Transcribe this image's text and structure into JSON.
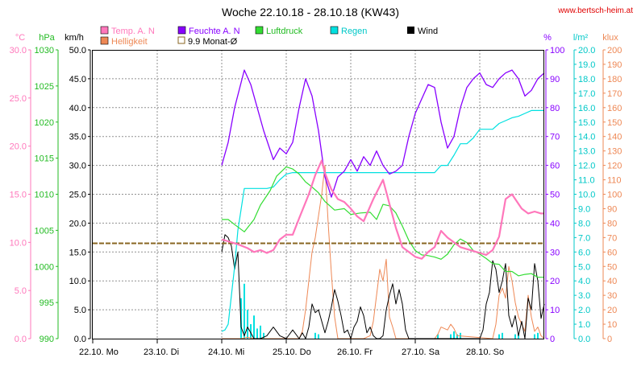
{
  "header": {
    "title": "Woche 22.10.18 - 28.10.18 (KW43)",
    "url": "www.bertsch-heim.at"
  },
  "colors": {
    "temp": "#ff77bb",
    "humidity": "#8800ff",
    "pressure": "#33dd33",
    "rain": "#00e0e0",
    "wind": "#000000",
    "brightness": "#ee8855",
    "month_avg": "#886622",
    "grid": "#909090"
  },
  "chart_data": {
    "type": "line",
    "title": "Woche 22.10.18 - 28.10.18 (KW43)",
    "x_ticks": [
      "22.10.  Mo",
      "23.10.  Di",
      "24.10.  Mi",
      "25.10.  Do",
      "26.10.  Fr",
      "27.10.  Sa",
      "28.10.  So"
    ],
    "legend": [
      {
        "key": "temp",
        "label": "Temp. A. N",
        "style": "box"
      },
      {
        "key": "humidity",
        "label": "Feuchte A. N",
        "style": "box"
      },
      {
        "key": "pressure",
        "label": "Luftdruck",
        "style": "box"
      },
      {
        "key": "rain",
        "label": "Regen",
        "style": "box"
      },
      {
        "key": "wind",
        "label": "Wind",
        "style": "box"
      },
      {
        "key": "brightness",
        "label": "Helligkeit",
        "style": "box"
      },
      {
        "key": "month_avg",
        "label": "9.9 Monat-Ø",
        "style": "outline"
      }
    ],
    "axes": {
      "temp": {
        "unit": "°C",
        "ticks": [
          "0.0",
          "5.0",
          "10.0",
          "15.0",
          "20.0",
          "25.0",
          "30.0"
        ],
        "range": [
          0,
          30
        ]
      },
      "pressure": {
        "unit": "hPa",
        "ticks": [
          "990",
          "995",
          "1000",
          "1005",
          "1010",
          "1015",
          "1020",
          "1025",
          "1030"
        ],
        "range": [
          990,
          1030
        ]
      },
      "wind": {
        "unit": "km/h",
        "ticks": [
          "0.0",
          "5.0",
          "10.0",
          "15.0",
          "20.0",
          "25.0",
          "30.0",
          "35.0",
          "40.0",
          "45.0",
          "50.0"
        ],
        "range": [
          0,
          50
        ]
      },
      "humidity": {
        "unit": "%",
        "ticks": [
          "0",
          "10",
          "20",
          "30",
          "40",
          "50",
          "60",
          "70",
          "80",
          "90",
          "100"
        ],
        "range": [
          0,
          100
        ]
      },
      "rain": {
        "unit": "l/m²",
        "ticks": [
          "0.0",
          "1.0",
          "2.0",
          "3.0",
          "4.0",
          "5.0",
          "6.0",
          "7.0",
          "8.0",
          "9.0",
          "10.0",
          "11.0",
          "12.0",
          "13.0",
          "14.0",
          "15.0",
          "16.0",
          "17.0",
          "18.0",
          "19.0",
          "20.0"
        ],
        "range": [
          0,
          20
        ]
      },
      "brightness": {
        "unit": "klux",
        "ticks": [
          "0",
          "10",
          "20",
          "30",
          "40",
          "50",
          "60",
          "70",
          "80",
          "90",
          "100",
          "110",
          "120",
          "130",
          "140",
          "150",
          "160",
          "170",
          "180",
          "190",
          "200"
        ],
        "range": [
          0,
          200
        ]
      }
    },
    "x_range_days": [
      0,
      7
    ],
    "month_avg_temp": 9.9,
    "series": {
      "temp": {
        "x": [
          2.0,
          2.1,
          2.25,
          2.4,
          2.5,
          2.6,
          2.7,
          2.8,
          2.9,
          3.0,
          3.1,
          3.2,
          3.35,
          3.45,
          3.55,
          3.6,
          3.7,
          3.8,
          3.9,
          4.0,
          4.1,
          4.2,
          4.35,
          4.5,
          4.6,
          4.7,
          4.8,
          4.9,
          5.0,
          5.1,
          5.2,
          5.3,
          5.4,
          5.5,
          5.6,
          5.7,
          5.8,
          5.9,
          6.0,
          6.1,
          6.2,
          6.3,
          6.4,
          6.5,
          6.55,
          6.65,
          6.75,
          6.85,
          6.95,
          7.0
        ],
        "y": [
          10.3,
          10.1,
          9.8,
          9.4,
          9.0,
          9.2,
          8.9,
          9.2,
          10.3,
          10.8,
          10.8,
          12.5,
          15.0,
          17.0,
          18.5,
          17.2,
          15.5,
          14.5,
          14.2,
          13.5,
          12.7,
          12.2,
          14.5,
          16.5,
          14.0,
          11.5,
          9.5,
          9.0,
          8.5,
          8.3,
          9.0,
          9.5,
          11.2,
          10.5,
          10.0,
          9.5,
          9.3,
          9.1,
          8.9,
          8.7,
          9.2,
          10.6,
          14.5,
          15.0,
          14.5,
          13.5,
          13.0,
          13.2,
          13.0,
          13.0
        ]
      },
      "humidity": {
        "x": [
          2.0,
          2.1,
          2.2,
          2.35,
          2.45,
          2.55,
          2.65,
          2.8,
          2.9,
          3.0,
          3.1,
          3.2,
          3.3,
          3.4,
          3.5,
          3.6,
          3.7,
          3.8,
          3.9,
          4.0,
          4.1,
          4.2,
          4.3,
          4.4,
          4.5,
          4.6,
          4.7,
          4.8,
          4.9,
          5.0,
          5.1,
          5.2,
          5.3,
          5.4,
          5.5,
          5.6,
          5.7,
          5.8,
          5.9,
          6.0,
          6.1,
          6.2,
          6.3,
          6.4,
          6.5,
          6.6,
          6.7,
          6.8,
          6.9,
          7.0
        ],
        "y": [
          60,
          68,
          80,
          93,
          88,
          80,
          72,
          62,
          66,
          64,
          68,
          80,
          90,
          84,
          72,
          56,
          49,
          56,
          58,
          62,
          58,
          63,
          60,
          65,
          60,
          57,
          58,
          60,
          70,
          78,
          83,
          88,
          87,
          75,
          66,
          70,
          80,
          87,
          90,
          92,
          88,
          87,
          90,
          92,
          93,
          90,
          84,
          86,
          90,
          92
        ]
      },
      "pressure": {
        "x": [
          2.0,
          2.1,
          2.2,
          2.35,
          2.5,
          2.6,
          2.75,
          2.85,
          3.0,
          3.1,
          3.2,
          3.3,
          3.4,
          3.5,
          3.6,
          3.75,
          3.9,
          4.0,
          4.15,
          4.3,
          4.4,
          4.5,
          4.6,
          4.7,
          4.8,
          4.9,
          5.0,
          5.1,
          5.2,
          5.3,
          5.4,
          5.5,
          5.6,
          5.7,
          5.8,
          5.9,
          6.0,
          6.1,
          6.2,
          6.3,
          6.4,
          6.5,
          6.6,
          6.7,
          6.8,
          6.9,
          7.0
        ],
        "y": [
          1006.5,
          1006.5,
          1005.8,
          1004.8,
          1006.5,
          1008.5,
          1010.5,
          1012.5,
          1013.8,
          1013.5,
          1012.8,
          1011.7,
          1011.0,
          1010.2,
          1009.0,
          1007.8,
          1008.0,
          1007.2,
          1007.4,
          1007.5,
          1006.5,
          1008.6,
          1008.4,
          1007.4,
          1005.6,
          1003.6,
          1002.2,
          1001.6,
          1001.5,
          1001.3,
          1001.0,
          1001.7,
          1003.0,
          1003.8,
          1003.3,
          1002.2,
          1001.7,
          1001.1,
          1000.4,
          1000.3,
          999.3,
          999.3,
          998.7,
          998.9,
          999.0,
          998.5,
          998.5
        ]
      },
      "rain": {
        "x": [
          2.0,
          2.05,
          2.1,
          2.15,
          2.2,
          2.25,
          2.35,
          2.5,
          2.6,
          2.7,
          2.8,
          2.9,
          3.0,
          3.1,
          3.2,
          3.3,
          3.4,
          3.5,
          3.6,
          3.7,
          3.8,
          3.9,
          4.0,
          4.1,
          4.2,
          4.3,
          4.4,
          4.5,
          4.6,
          4.7,
          4.8,
          4.9,
          5.0,
          5.1,
          5.2,
          5.3,
          5.4,
          5.5,
          5.6,
          5.7,
          5.8,
          5.9,
          6.0,
          6.1,
          6.2,
          6.3,
          6.4,
          6.5,
          6.6,
          6.7,
          6.8,
          6.9,
          7.0
        ],
        "y": [
          0.5,
          0.6,
          1.0,
          3.0,
          5.0,
          7.5,
          10.4,
          10.4,
          10.4,
          10.4,
          10.5,
          11.0,
          11.4,
          11.5,
          11.5,
          11.5,
          11.5,
          11.5,
          11.5,
          11.5,
          11.5,
          11.5,
          11.5,
          11.5,
          11.5,
          11.5,
          11.5,
          11.5,
          11.5,
          11.5,
          11.5,
          11.5,
          11.5,
          11.5,
          11.5,
          11.5,
          12.0,
          12.0,
          12.7,
          13.5,
          13.5,
          13.9,
          14.5,
          14.5,
          14.5,
          14.9,
          15.1,
          15.3,
          15.4,
          15.6,
          15.8,
          15.8,
          15.8
        ]
      },
      "rain_bars": {
        "x": [
          2.3,
          2.35,
          2.4,
          2.45,
          2.5,
          2.55,
          2.6,
          2.65,
          3.45,
          3.5,
          5.35,
          5.55,
          5.6,
          5.65,
          5.7,
          6.3,
          6.35,
          6.55,
          6.6,
          6.85,
          6.9
        ],
        "y": [
          2.8,
          3.8,
          2.0,
          1.0,
          1.6,
          0.7,
          0.9,
          0.4,
          0.4,
          0.3,
          0.3,
          0.3,
          0.5,
          0.3,
          0.4,
          0.3,
          0.4,
          0.3,
          0.3,
          0.3,
          0.4
        ]
      },
      "wind": {
        "x": [
          2.0,
          2.05,
          2.1,
          2.15,
          2.2,
          2.25,
          2.3,
          2.35,
          2.4,
          2.45,
          2.5,
          2.6,
          2.7,
          2.8,
          2.9,
          3.0,
          3.1,
          3.2,
          3.25,
          3.3,
          3.35,
          3.4,
          3.45,
          3.5,
          3.6,
          3.65,
          3.7,
          3.75,
          3.8,
          3.85,
          3.9,
          3.95,
          4.0,
          4.05,
          4.1,
          4.15,
          4.2,
          4.25,
          4.3,
          4.35,
          4.4,
          4.45,
          4.5,
          4.55,
          4.6,
          4.65,
          4.7,
          4.75,
          4.8,
          4.85,
          4.9,
          5.0,
          5.1,
          5.2,
          5.3,
          5.4,
          5.5,
          5.6,
          5.7,
          5.8,
          5.9,
          6.0,
          6.05,
          6.1,
          6.15,
          6.2,
          6.25,
          6.3,
          6.35,
          6.4,
          6.45,
          6.5,
          6.55,
          6.6,
          6.65,
          6.7,
          6.75,
          6.8,
          6.85,
          6.9,
          6.95,
          7.0
        ],
        "y": [
          15.0,
          18.0,
          17.5,
          16.0,
          12.0,
          15.0,
          2.0,
          0.5,
          2.0,
          1.0,
          0.0,
          0.0,
          0.5,
          2.0,
          0.5,
          0.0,
          1.5,
          0.0,
          1.0,
          0.0,
          2.0,
          6.0,
          4.5,
          5.0,
          1.0,
          3.0,
          5.5,
          8.5,
          6.5,
          4.0,
          1.0,
          1.5,
          0.0,
          2.0,
          3.0,
          5.5,
          4.0,
          1.0,
          2.0,
          0.5,
          0.0,
          0.0,
          0.5,
          5.0,
          7.5,
          9.5,
          6.0,
          8.5,
          6.0,
          1.5,
          0.0,
          0.0,
          0.0,
          0.0,
          0.0,
          0.0,
          0.0,
          0.0,
          0.0,
          0.0,
          0.0,
          0.0,
          1.5,
          6.0,
          8.0,
          13.5,
          12.0,
          8.0,
          10.0,
          13.0,
          4.0,
          2.0,
          4.0,
          0.5,
          3.0,
          0.0,
          7.0,
          5.0,
          13.0,
          10.0,
          3.5,
          6.0
        ]
      },
      "brightness": {
        "x": [
          2.0,
          2.3,
          2.4,
          2.5,
          3.0,
          3.2,
          3.25,
          3.3,
          3.35,
          3.4,
          3.45,
          3.5,
          3.55,
          3.6,
          3.65,
          3.7,
          3.75,
          3.8,
          4.2,
          4.3,
          4.35,
          4.4,
          4.45,
          4.5,
          4.55,
          4.6,
          4.65,
          4.7,
          4.8,
          5.3,
          5.35,
          5.4,
          5.5,
          5.55,
          5.6,
          5.65,
          6.2,
          6.25,
          6.3,
          6.35,
          6.4,
          6.45,
          6.5,
          6.55,
          6.6,
          6.65,
          6.7,
          6.75,
          6.8,
          6.85,
          6.9,
          6.95,
          7.0
        ],
        "y": [
          0,
          0,
          1,
          0,
          0,
          0,
          5,
          20,
          40,
          60,
          70,
          85,
          100,
          120,
          80,
          45,
          15,
          0,
          0,
          2,
          12,
          30,
          48,
          40,
          55,
          15,
          8,
          0,
          0,
          0,
          3,
          8,
          6,
          10,
          7,
          2,
          0,
          10,
          30,
          35,
          28,
          50,
          40,
          25,
          15,
          10,
          5,
          30,
          15,
          5,
          8,
          2,
          0
        ]
      }
    }
  }
}
